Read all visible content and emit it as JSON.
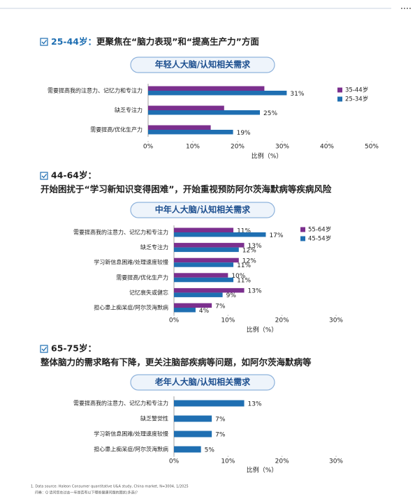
{
  "chart_data": [
    {
      "type": "bar",
      "orientation": "horizontal",
      "heading": [
        "25-44岁：",
        "更聚焦在“脑力表现”和“提高生产力”方面"
      ],
      "title": "年轻人大脑/认知相关需求",
      "categories": [
        "需要提高我的注意力、记忆力和专注力",
        "缺乏专注力",
        "需要提高/优化生产力"
      ],
      "series": [
        {
          "name": "35-44岁",
          "color": "#7b2f8e",
          "values": [
            26,
            17,
            14
          ]
        },
        {
          "name": "25-34岁",
          "color": "#1f6fb2",
          "values": [
            31,
            25,
            19
          ],
          "value_labels": [
            "31%",
            "25%",
            "19%"
          ]
        }
      ],
      "xlim": [
        0,
        50
      ],
      "xticks": [
        {
          "value": 0,
          "label": "0%"
        },
        {
          "value": 10,
          "label": "10%"
        },
        {
          "value": 20,
          "label": "20%"
        },
        {
          "value": 30,
          "label": "30%"
        },
        {
          "value": 40,
          "label": "40%"
        },
        {
          "value": 50,
          "label": "50%"
        }
      ],
      "xlabel": "比例（%）",
      "grid": false,
      "legend": "upper right"
    },
    {
      "type": "bar",
      "orientation": "horizontal",
      "heading": [
        "44-64岁：",
        "开始困扰于“学习新知识变得困难”，开始重视预防阿尔茨海默病等疾病风险"
      ],
      "title": "中年人大脑/认知相关需求",
      "categories": [
        "需要提高我的注意力、记忆力和专注力",
        "缺乏专注力",
        "学习新信息困难/处理速度较慢",
        "需要提高/优化生产力",
        "记忆衰失或健忘",
        "担心患上痴呆症/阿尔茨海默病"
      ],
      "series": [
        {
          "name": "55-64岁",
          "color": "#7b2f8e",
          "values": [
            11,
            13,
            12,
            10,
            13,
            7
          ],
          "value_labels": [
            "11%",
            "13%",
            "12%",
            "10%",
            "13%",
            "7%"
          ]
        },
        {
          "name": "45-54岁",
          "color": "#1f6fb2",
          "values": [
            17,
            12,
            11,
            11,
            9,
            4
          ],
          "value_labels": [
            "17%",
            "12%",
            "11%",
            "11%",
            "9%",
            "4%"
          ]
        }
      ],
      "xlim": [
        0,
        30
      ],
      "xticks": [
        {
          "value": 0,
          "label": "0%"
        },
        {
          "value": 10,
          "label": "10%"
        },
        {
          "value": 20,
          "label": "20%"
        },
        {
          "value": 30,
          "label": "30%"
        }
      ],
      "xlabel": "比例（%）",
      "grid": false,
      "legend": "upper right"
    },
    {
      "type": "bar",
      "orientation": "horizontal",
      "heading": [
        "65-75岁：",
        "整体脑力的需求略有下降，更关注脑部疾病等问题，如阿尔茨海默病等"
      ],
      "title": "老年人大脑/认知相关需求",
      "categories": [
        "需要提高我的注意力、记忆力和专注力",
        "缺乏警觉性",
        "学习新信息困难/处理速度较慢",
        "担心患上痴呆症/阿尔茨海默病"
      ],
      "series": [
        {
          "color": "#1f6fb2",
          "values": [
            13,
            7,
            7,
            5
          ],
          "value_labels": [
            "13%",
            "7%",
            "7%",
            "5%"
          ]
        }
      ],
      "xlim": [
        0,
        30
      ],
      "xticks": [
        {
          "value": 0,
          "label": "0%"
        },
        {
          "value": 10,
          "label": "10%"
        },
        {
          "value": 20,
          "label": "20%"
        },
        {
          "value": 30,
          "label": "30%"
        }
      ],
      "xlabel": "比例（%）",
      "grid": false
    }
  ],
  "footnote": [
    "1. Data source: Haleon Consumer quantitative U&A study, China market, N=3004, 1/2025",
    "问卷：Q 请问您在过去一年是否有以下哪些健康问题的困扰(多选)？"
  ]
}
